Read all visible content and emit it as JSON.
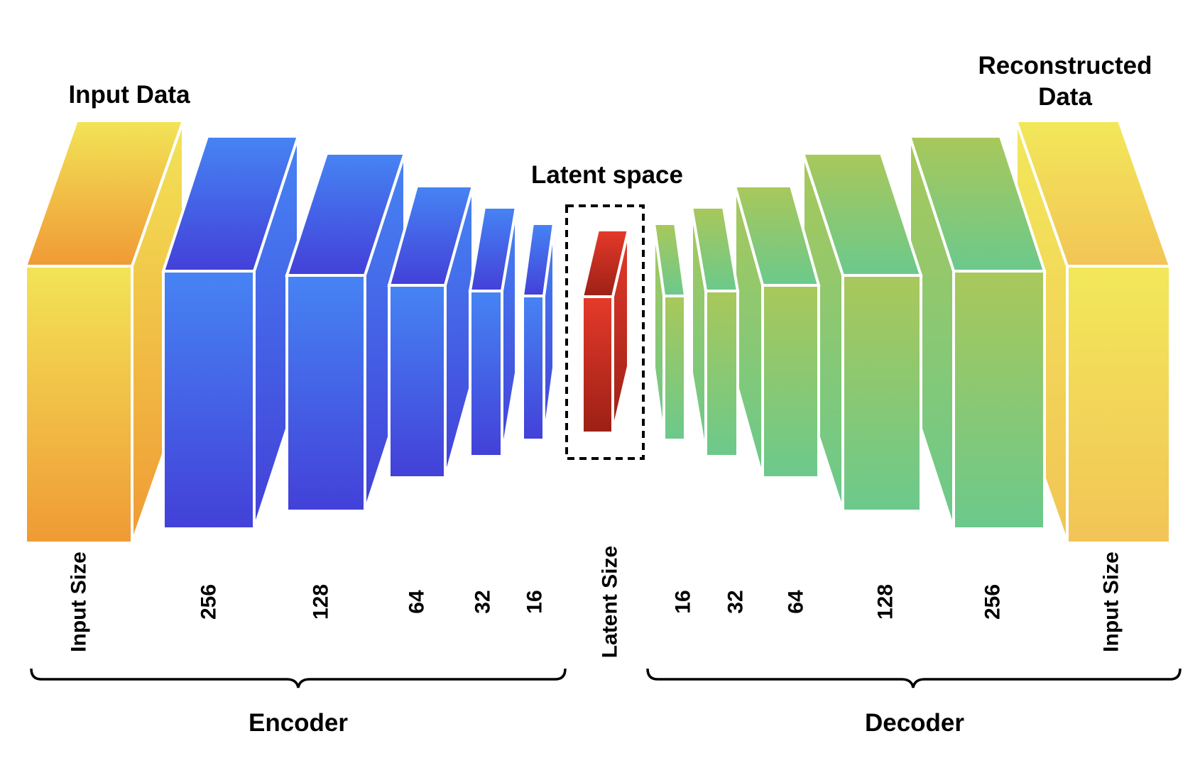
{
  "titles": {
    "input": "Input Data",
    "output_line1": "Reconstructed",
    "output_line2": "Data",
    "latent": "Latent space"
  },
  "sections": {
    "encoder": "Encoder",
    "decoder": "Decoder"
  },
  "encoder_dims": [
    "Input Size",
    "256",
    "128",
    "64",
    "32",
    "16"
  ],
  "latent_dim": "Latent Size",
  "decoder_dims": [
    "16",
    "32",
    "64",
    "128",
    "256",
    "Input Size"
  ],
  "colors": {
    "input_top": "#f2e457",
    "input_bottom": "#f09a35",
    "encoder_top": "#4684f4",
    "encoder_bottom": "#4340d8",
    "latent_top": "#e53a2a",
    "latent_bottom": "#9c2016",
    "decoder_top": "#a9c85a",
    "decoder_bottom": "#6bc98c",
    "output_top": "#f2e85a",
    "output_bottom": "#f2c456"
  }
}
